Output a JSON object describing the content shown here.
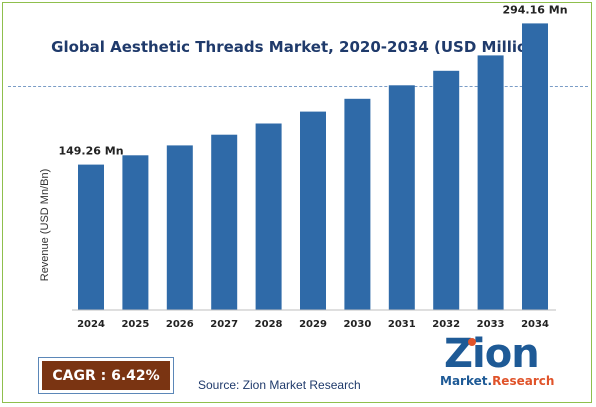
{
  "chart_data": {
    "type": "bar",
    "title": "Global Aesthetic Threads Market, 2020-2034 (USD Million)",
    "ylabel": "Revenue (USD Mn/Bn)",
    "xlabel": "",
    "categories": [
      "2024",
      "2025",
      "2026",
      "2027",
      "2028",
      "2029",
      "2030",
      "2031",
      "2032",
      "2033",
      "2034"
    ],
    "values": [
      149.26,
      158.8,
      169.0,
      179.9,
      191.4,
      203.7,
      216.8,
      230.7,
      245.5,
      261.3,
      294.16
    ],
    "data_labels": [
      {
        "category": "2024",
        "text": "149.26 Mn"
      },
      {
        "category": "2034",
        "text": "294.16 Mn"
      }
    ],
    "ylim": [
      0,
      310
    ],
    "grid": false,
    "bar_color": "#2f6aa8"
  },
  "footer": {
    "cagr": "CAGR : 6.42%",
    "source": "Source: Zion Market Research"
  },
  "logo": {
    "name": "Zion",
    "sub_market": "Market.",
    "sub_research": "Research"
  }
}
